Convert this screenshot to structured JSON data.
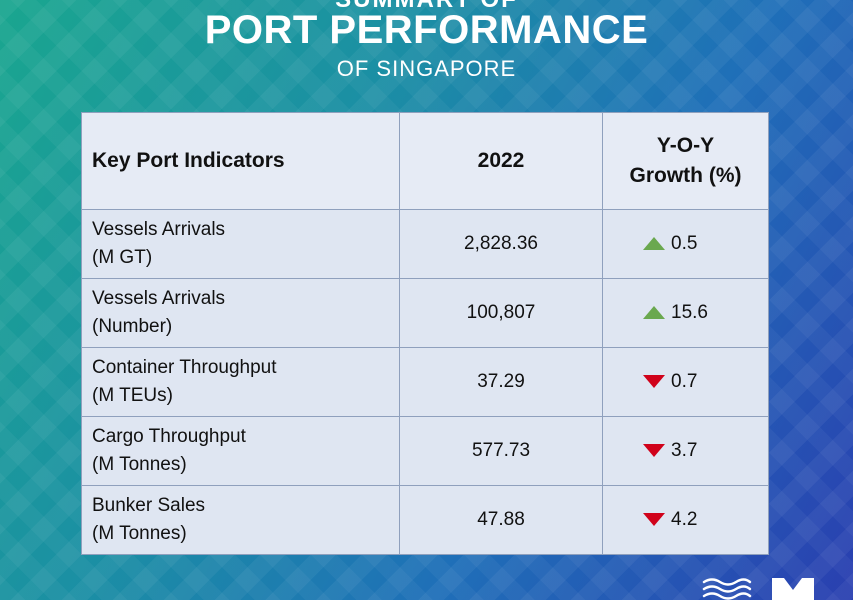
{
  "header": {
    "cut_title": "SUMMARY OF",
    "title": "PORT PERFORMANCE",
    "subtitle": "OF SINGAPORE"
  },
  "table": {
    "headers": [
      "Key Port Indicators",
      "2022",
      "Y-O-Y",
      "Growth (%)"
    ],
    "rows": [
      {
        "name1": "Vessels Arrivals",
        "name2": "(M GT)",
        "value": "2,828.36",
        "growth": "0.5",
        "direction": "up"
      },
      {
        "name1": "Vessels Arrivals",
        "name2": "(Number)",
        "value": "100,807",
        "growth": "15.6",
        "direction": "up"
      },
      {
        "name1": "Container Throughput",
        "name2": "(M TEUs)",
        "value": "37.29",
        "growth": "0.7",
        "direction": "down"
      },
      {
        "name1": "Cargo Throughput",
        "name2": "(M Tonnes)",
        "value": "577.73",
        "growth": "3.7",
        "direction": "down"
      },
      {
        "name1": "Bunker Sales",
        "name2": "(M Tonnes)",
        "value": "47.88",
        "growth": "4.2",
        "direction": "down"
      }
    ]
  },
  "colors": {
    "up": "#6aa84f",
    "down": "#d0021b"
  },
  "icons": {
    "up": "triangle-up-icon",
    "down": "triangle-down-icon",
    "logo": "mpa-logo-icon"
  }
}
